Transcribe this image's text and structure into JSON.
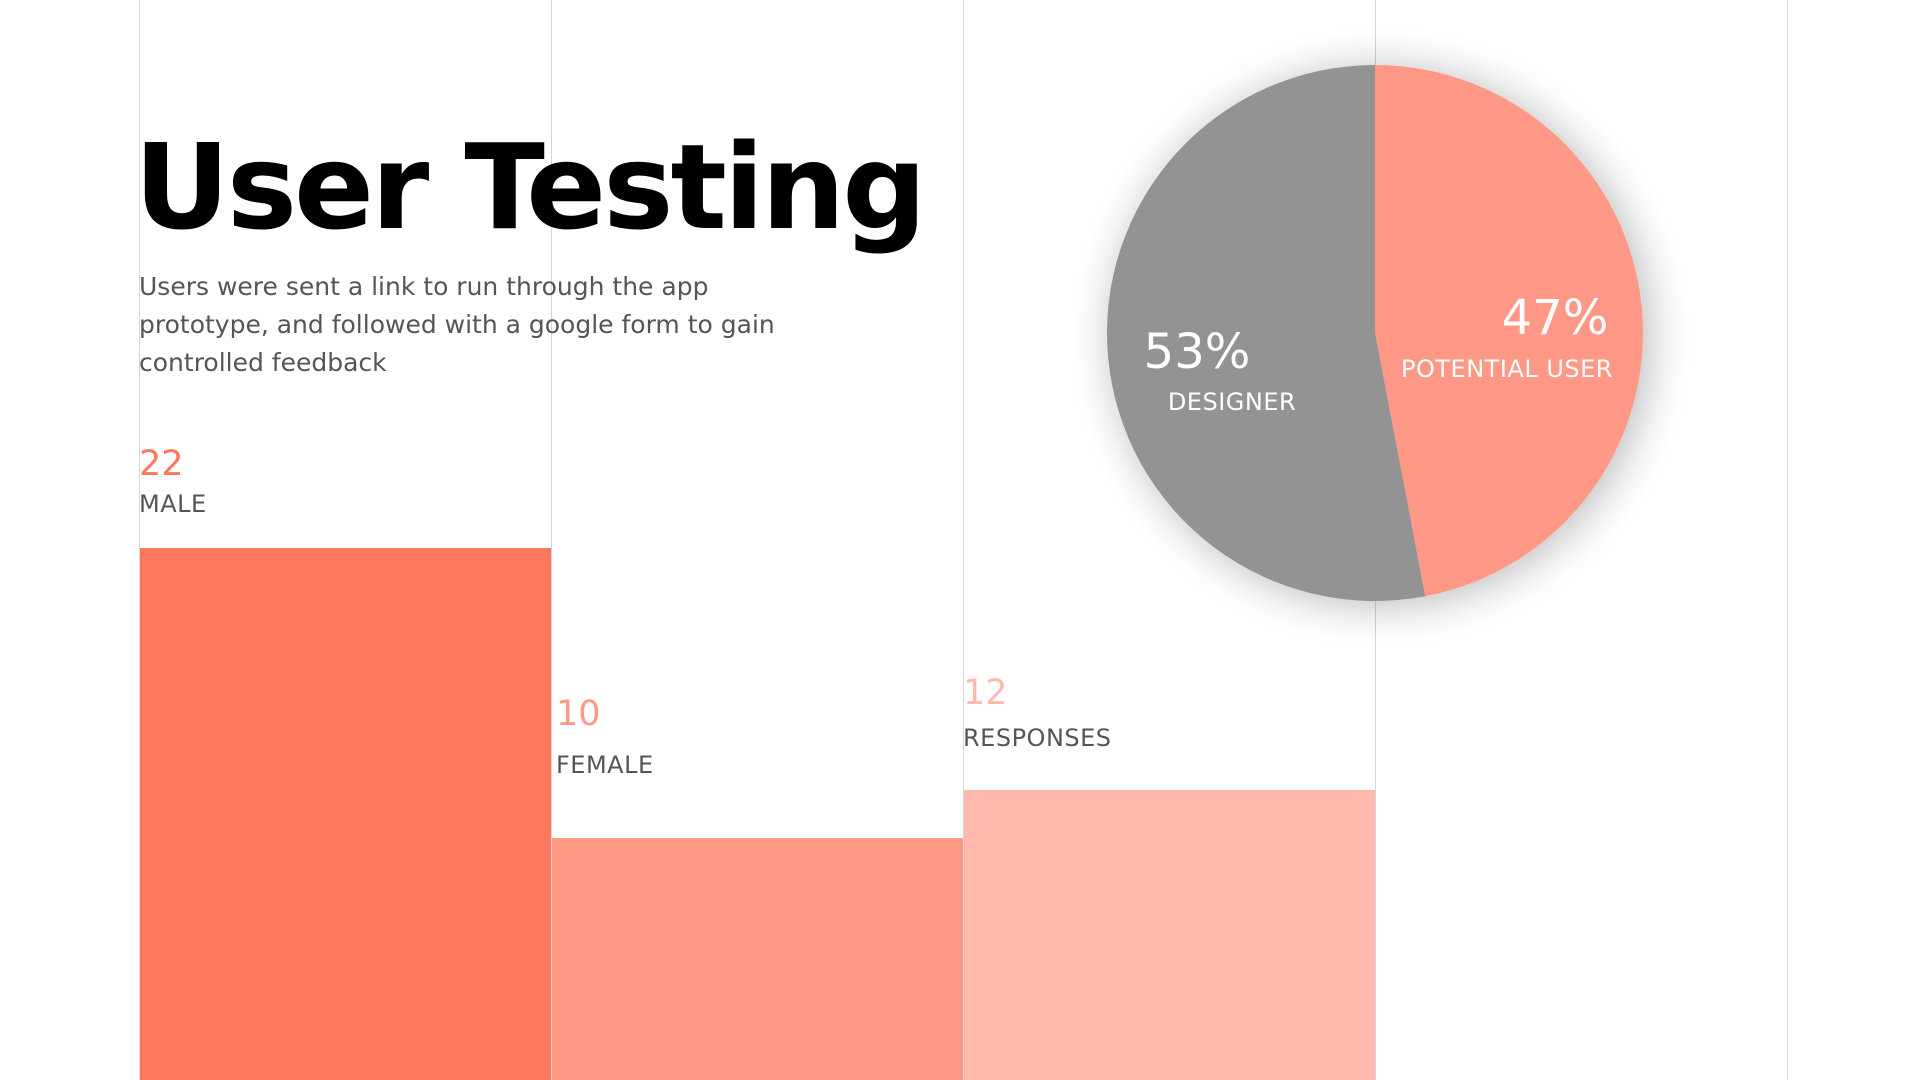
{
  "header": {
    "title": "User Testing",
    "subtitle": "Users were sent a link to run through the app prototype, and followed with a google form to gain controlled feedback"
  },
  "colors": {
    "bar_male": "#FF775C",
    "bar_female": "#FF9A86",
    "bar_responses": "#FFBAAD",
    "value_male": "#FF775C",
    "value_female": "#FF9A86",
    "value_responses": "#FFBAAD",
    "pie_designer": "#939393",
    "pie_potential_user": "#FF9886",
    "grid": "#D6D6D6"
  },
  "chart_data": [
    {
      "type": "bar",
      "categories": [
        "MALE",
        "FEMALE",
        "RESPONSES"
      ],
      "values": [
        22,
        10,
        12
      ],
      "value_labels": [
        "22",
        "10",
        "12"
      ],
      "title": "",
      "xlabel": "",
      "ylabel": "",
      "grid": true
    },
    {
      "type": "pie",
      "slices": [
        {
          "label": "POTENTIAL USER",
          "pct_label": "47%",
          "value": 47,
          "color": "#FF9886"
        },
        {
          "label": "DESIGNER",
          "pct_label": "53%",
          "value": 53,
          "color": "#939393"
        }
      ],
      "title": ""
    }
  ]
}
